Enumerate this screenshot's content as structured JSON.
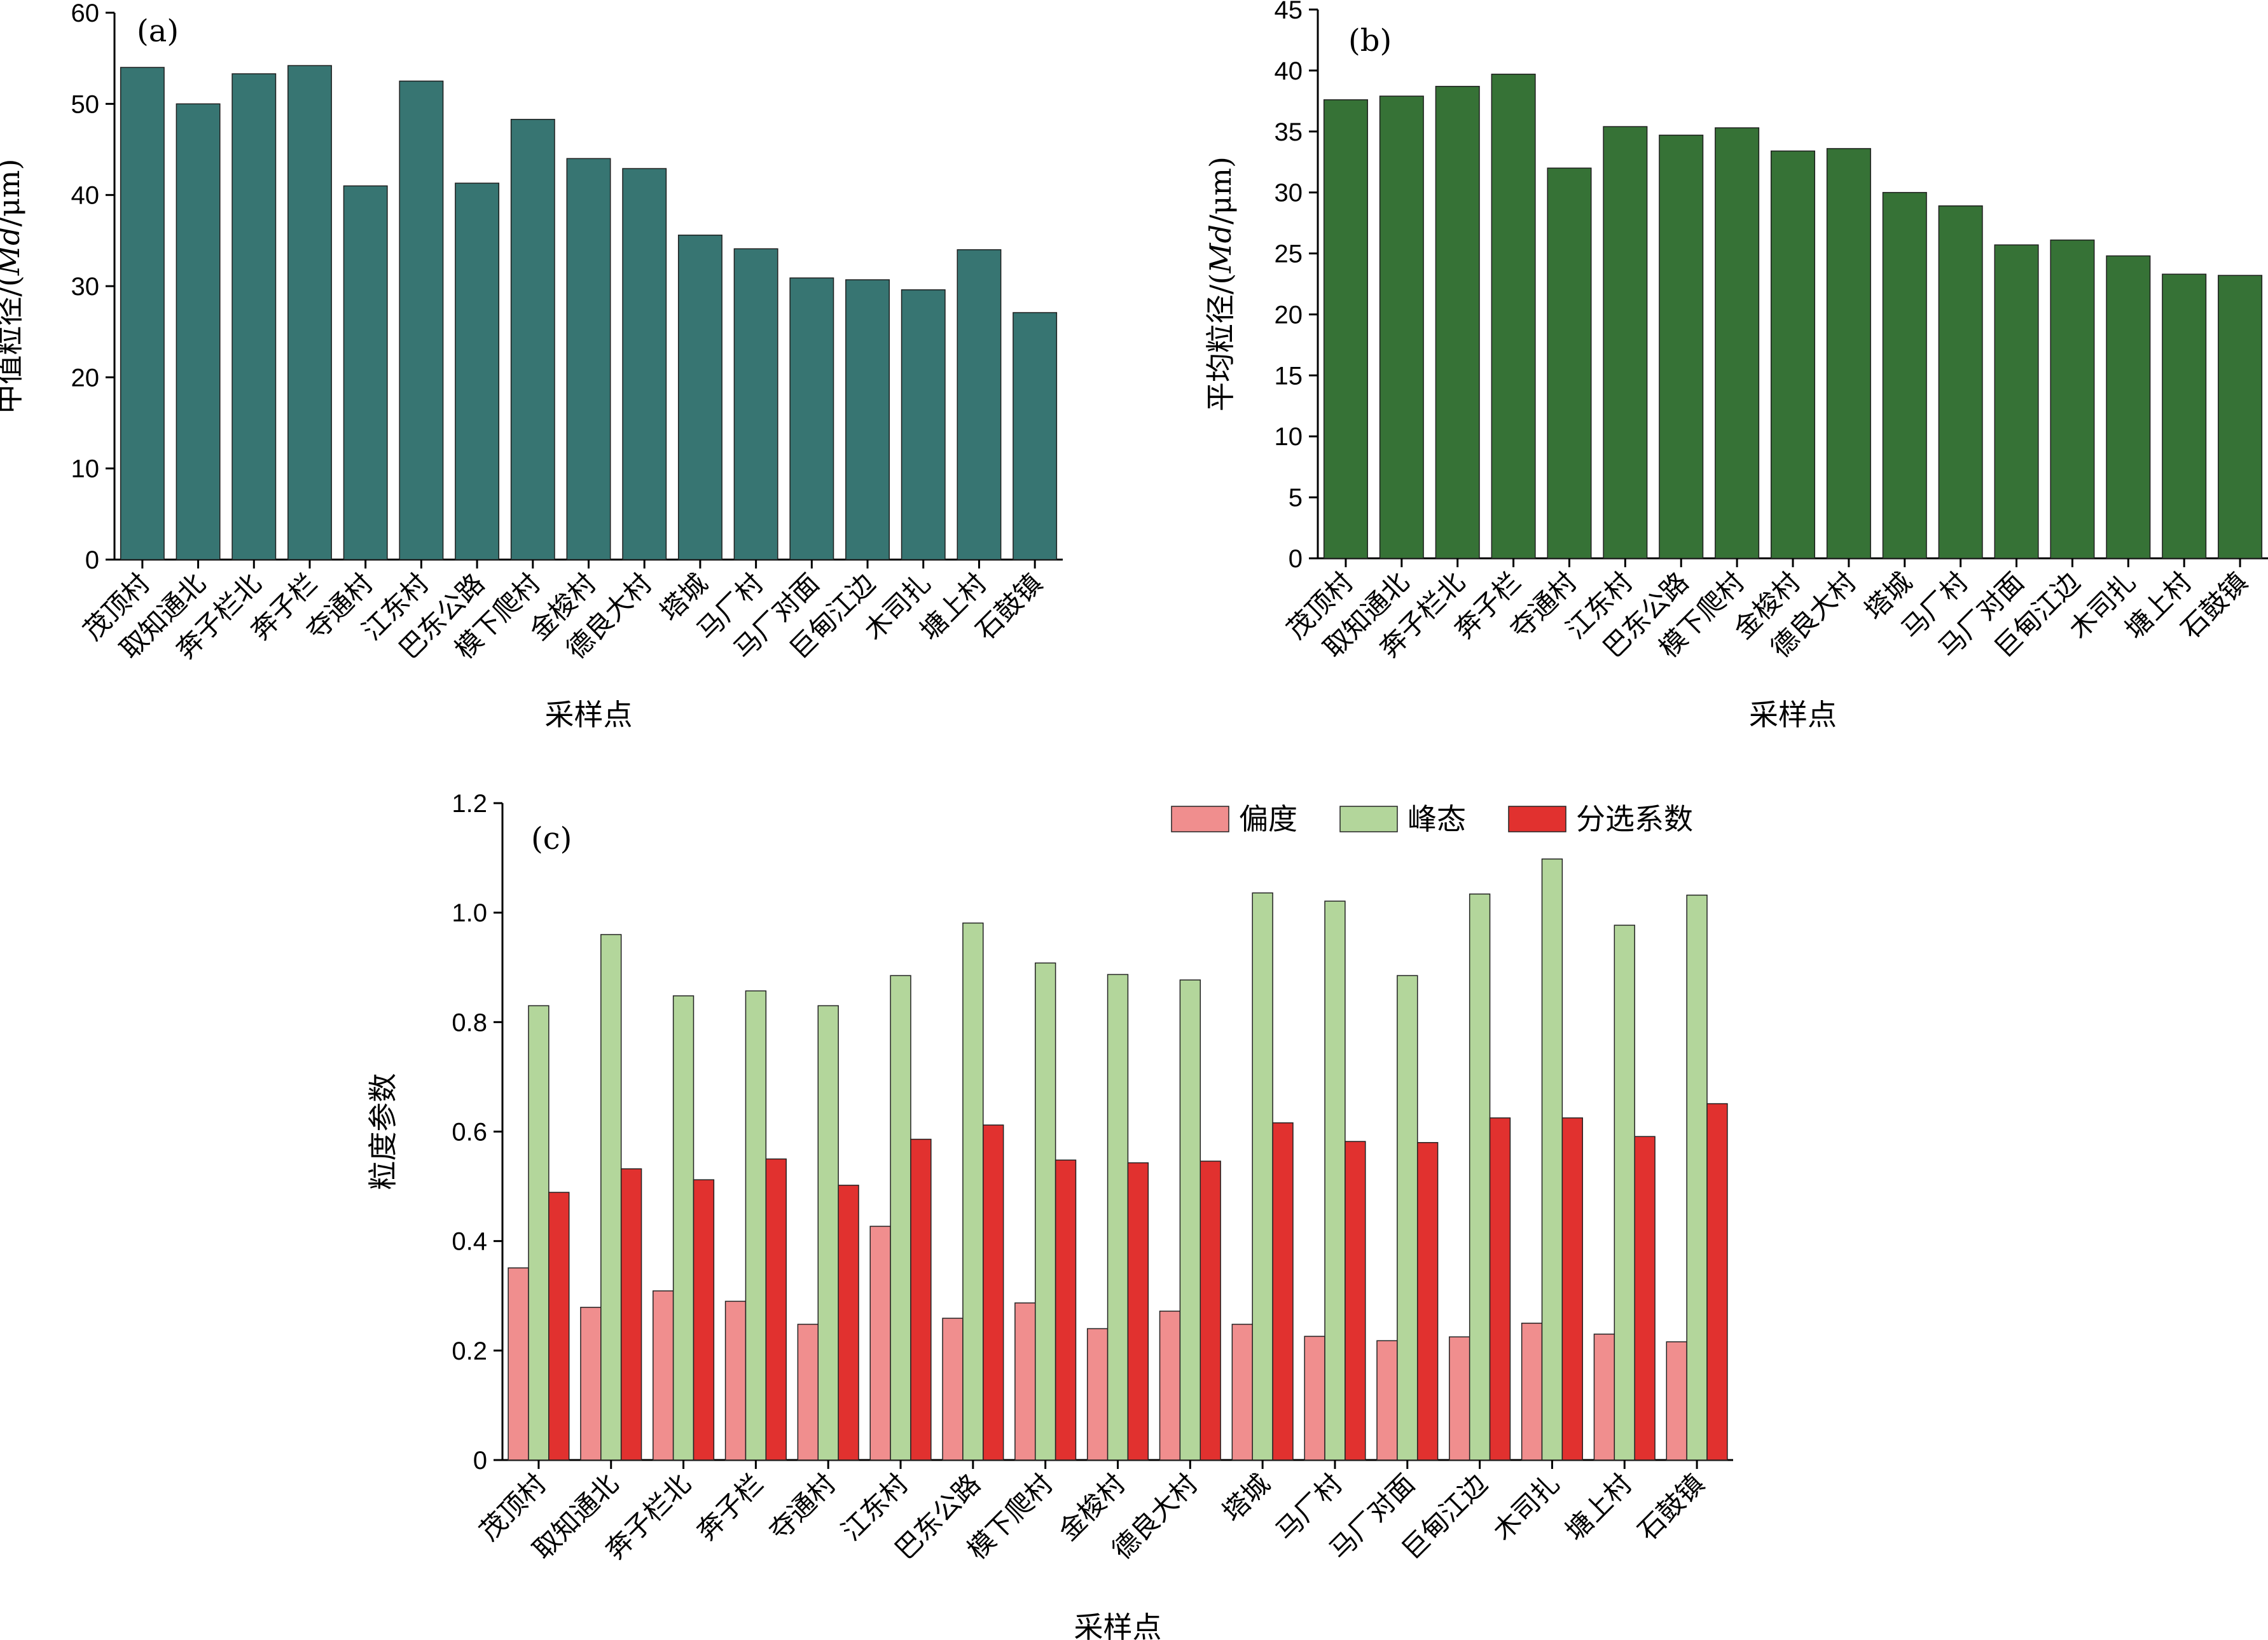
{
  "chart_data": [
    {
      "type": "bar",
      "panel_label": "(a)",
      "xlabel": "采样点",
      "ylabel": "中值粒径/(",
      "ylabel_italic": "Md",
      "ylabel_tail": "/μm)",
      "ylim": [
        0,
        60
      ],
      "yticks": [
        "0",
        "10",
        "20",
        "30",
        "40",
        "50",
        "60"
      ],
      "categories": [
        "茂顶村",
        "取知通北",
        "奔子栏北",
        "奔子栏",
        "夺通村",
        "江东村",
        "巴东公路",
        "模下爬村",
        "金梭村",
        "德良大村",
        "塔城",
        "马厂村",
        "马厂对面",
        "巨甸江边",
        "木司扎",
        "塘上村",
        "石鼓镇"
      ],
      "values": [
        54.0,
        50.0,
        53.3,
        54.2,
        41.0,
        52.5,
        41.3,
        48.3,
        44.0,
        42.9,
        35.6,
        34.1,
        30.9,
        30.7,
        29.6,
        34.0,
        27.1
      ],
      "color": "#377572"
    },
    {
      "type": "bar",
      "panel_label": "(b)",
      "xlabel": "采样点",
      "ylabel": "平均粒径/(",
      "ylabel_italic": "Md",
      "ylabel_tail": "/μm)",
      "ylim": [
        0,
        45
      ],
      "yticks": [
        "0",
        "5",
        "10",
        "15",
        "20",
        "25",
        "30",
        "35",
        "40",
        "45"
      ],
      "categories": [
        "茂顶村",
        "取知通北",
        "奔子栏北",
        "奔子栏",
        "夺通村",
        "江东村",
        "巴东公路",
        "模下爬村",
        "金梭村",
        "德良大村",
        "塔城",
        "马厂村",
        "马厂对面",
        "巨甸江边",
        "木司扎",
        "塘上村",
        "石鼓镇"
      ],
      "values": [
        37.6,
        37.9,
        38.7,
        39.7,
        32.0,
        35.4,
        34.7,
        35.3,
        33.4,
        33.6,
        30.0,
        28.9,
        25.7,
        26.1,
        24.8,
        23.3,
        23.2
      ],
      "color": "#367236"
    },
    {
      "type": "bar",
      "panel_label": "(c)",
      "xlabel": "采样点",
      "ylabel": "粒度参数",
      "ylim": [
        0,
        1.2
      ],
      "yticks": [
        "0",
        "0.2",
        "0.4",
        "0.6",
        "0.8",
        "1.0",
        "1.2"
      ],
      "legend_position": "top-right",
      "categories": [
        "茂顶村",
        "取知通北",
        "奔子栏北",
        "奔子栏",
        "夺通村",
        "江东村",
        "巴东公路",
        "模下爬村",
        "金梭村",
        "德良大村",
        "塔城",
        "马厂村",
        "马厂对面",
        "巨甸江边",
        "木司扎",
        "塘上村",
        "石鼓镇"
      ],
      "series": [
        {
          "name": "偏度",
          "color": "#f08e8e",
          "values": [
            0.351,
            0.279,
            0.309,
            0.29,
            0.248,
            0.427,
            0.259,
            0.287,
            0.24,
            0.272,
            0.248,
            0.226,
            0.218,
            0.225,
            0.25,
            0.23,
            0.216
          ]
        },
        {
          "name": "峰态",
          "color": "#b3d69b",
          "values": [
            0.83,
            0.96,
            0.848,
            0.857,
            0.83,
            0.885,
            0.981,
            0.908,
            0.887,
            0.877,
            1.036,
            1.021,
            0.885,
            1.034,
            1.098,
            0.977,
            1.032
          ]
        },
        {
          "name": "分选系数",
          "color": "#e1312f",
          "values": [
            0.489,
            0.532,
            0.512,
            0.55,
            0.502,
            0.586,
            0.612,
            0.548,
            0.543,
            0.546,
            0.616,
            0.582,
            0.58,
            0.625,
            0.625,
            0.591,
            0.651
          ]
        }
      ]
    }
  ]
}
